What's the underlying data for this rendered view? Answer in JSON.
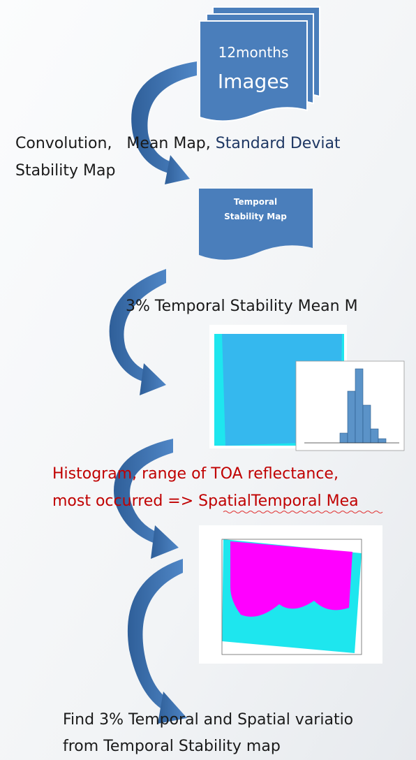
{
  "nodes": [
    {
      "label_lines": [
        "12months",
        "Images"
      ]
    },
    {
      "label_lines": [
        "Temporal",
        "Stability Map"
      ]
    }
  ],
  "steps": [
    {
      "parts": [
        "Convolution,   Mean Map, ",
        "Standard Deviat"
      ],
      "line2": "Stability Map"
    },
    {
      "text": "3% Temporal Stability Mean M"
    },
    {
      "lines": [
        "Histogram, range of TOA reflectance,",
        "most occurred => SpatialTemporal Mea"
      ]
    },
    {
      "lines": [
        "Find 3% Temporal and Spatial variatio",
        "from Temporal Stability map"
      ]
    }
  ]
}
